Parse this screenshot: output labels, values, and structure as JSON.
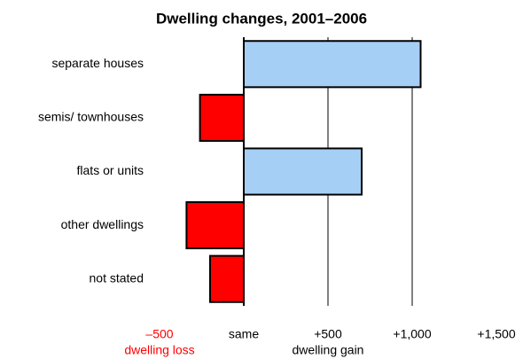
{
  "chart_data": {
    "type": "hbar",
    "title": "Dwelling changes, 2001–2006",
    "categories": [
      "separate houses",
      "semis/ townhouses",
      "flats or units",
      "other dwellings",
      "not stated"
    ],
    "values": [
      1050,
      -260,
      700,
      -340,
      -200
    ],
    "positive_color": "#a6cff5",
    "negative_color": "#ff0000",
    "xlim": [
      -500,
      1500
    ],
    "xticks": [
      {
        "value": -500,
        "label": "–500"
      },
      {
        "value": 0,
        "label": "same"
      },
      {
        "value": 500,
        "label": "+500"
      },
      {
        "value": 1000,
        "label": "+1,000"
      },
      {
        "value": 1500,
        "label": "+1,500"
      }
    ],
    "xlabel_negative": "dwelling loss",
    "xlabel_positive": "dwelling gain",
    "grid": true
  }
}
